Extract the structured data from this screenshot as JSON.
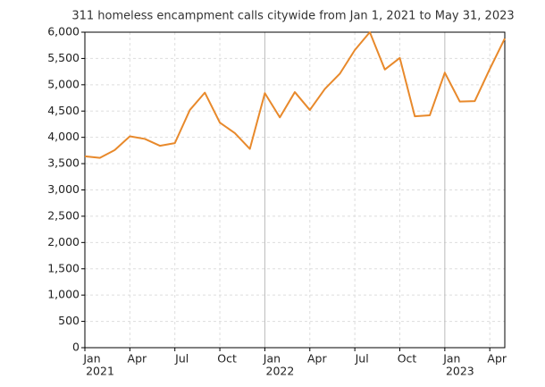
{
  "chart_data": {
    "type": "line",
    "title": "311 homeless encampment calls citywide from Jan 1, 2021 to May 31, 2023",
    "x": [
      "2021-01",
      "2021-02",
      "2021-03",
      "2021-04",
      "2021-05",
      "2021-06",
      "2021-07",
      "2021-08",
      "2021-09",
      "2021-10",
      "2021-11",
      "2021-12",
      "2022-01",
      "2022-02",
      "2022-03",
      "2022-04",
      "2022-05",
      "2022-06",
      "2022-07",
      "2022-08",
      "2022-09",
      "2022-10",
      "2022-11",
      "2022-12",
      "2023-01",
      "2023-02",
      "2023-03",
      "2023-04",
      "2023-05"
    ],
    "series": [
      {
        "color": "#e8892b",
        "values": [
          3640,
          3610,
          3760,
          4020,
          3970,
          3840,
          3890,
          4520,
          4850,
          4280,
          4080,
          3780,
          4840,
          4380,
          4860,
          4520,
          4920,
          5210,
          5660,
          6000,
          5290,
          5510,
          4400,
          4420,
          5230,
          4680,
          4690,
          5300,
          5880
        ]
      }
    ],
    "xlim": [
      "2021-01",
      "2023-05"
    ],
    "xticks": [
      {
        "value": "2021-01",
        "label": "Jan",
        "year": "2021"
      },
      {
        "value": "2021-04",
        "label": "Apr"
      },
      {
        "value": "2021-07",
        "label": "Jul"
      },
      {
        "value": "2021-10",
        "label": "Oct"
      },
      {
        "value": "2022-01",
        "label": "Jan",
        "year": "2022"
      },
      {
        "value": "2022-04",
        "label": "Apr"
      },
      {
        "value": "2022-07",
        "label": "Jul"
      },
      {
        "value": "2022-10",
        "label": "Oct"
      },
      {
        "value": "2023-01",
        "label": "Jan",
        "year": "2023"
      },
      {
        "value": "2023-04",
        "label": "Apr"
      }
    ],
    "ylim": [
      0,
      6000
    ],
    "yticks": [
      0,
      500,
      {
        "value": 1000,
        "label": "1,000"
      },
      {
        "value": 1500,
        "label": "1,500"
      },
      {
        "value": 2000,
        "label": "2,000"
      },
      {
        "value": 2500,
        "label": "2,500"
      },
      {
        "value": 3000,
        "label": "3,000"
      },
      {
        "value": 3500,
        "label": "3,500"
      },
      {
        "value": 4000,
        "label": "4,000"
      },
      {
        "value": 4500,
        "label": "4,500"
      },
      {
        "value": 5000,
        "label": "5,000"
      },
      {
        "value": 5500,
        "label": "5,500"
      },
      {
        "value": 6000,
        "label": "6,000"
      }
    ],
    "grid": true
  }
}
